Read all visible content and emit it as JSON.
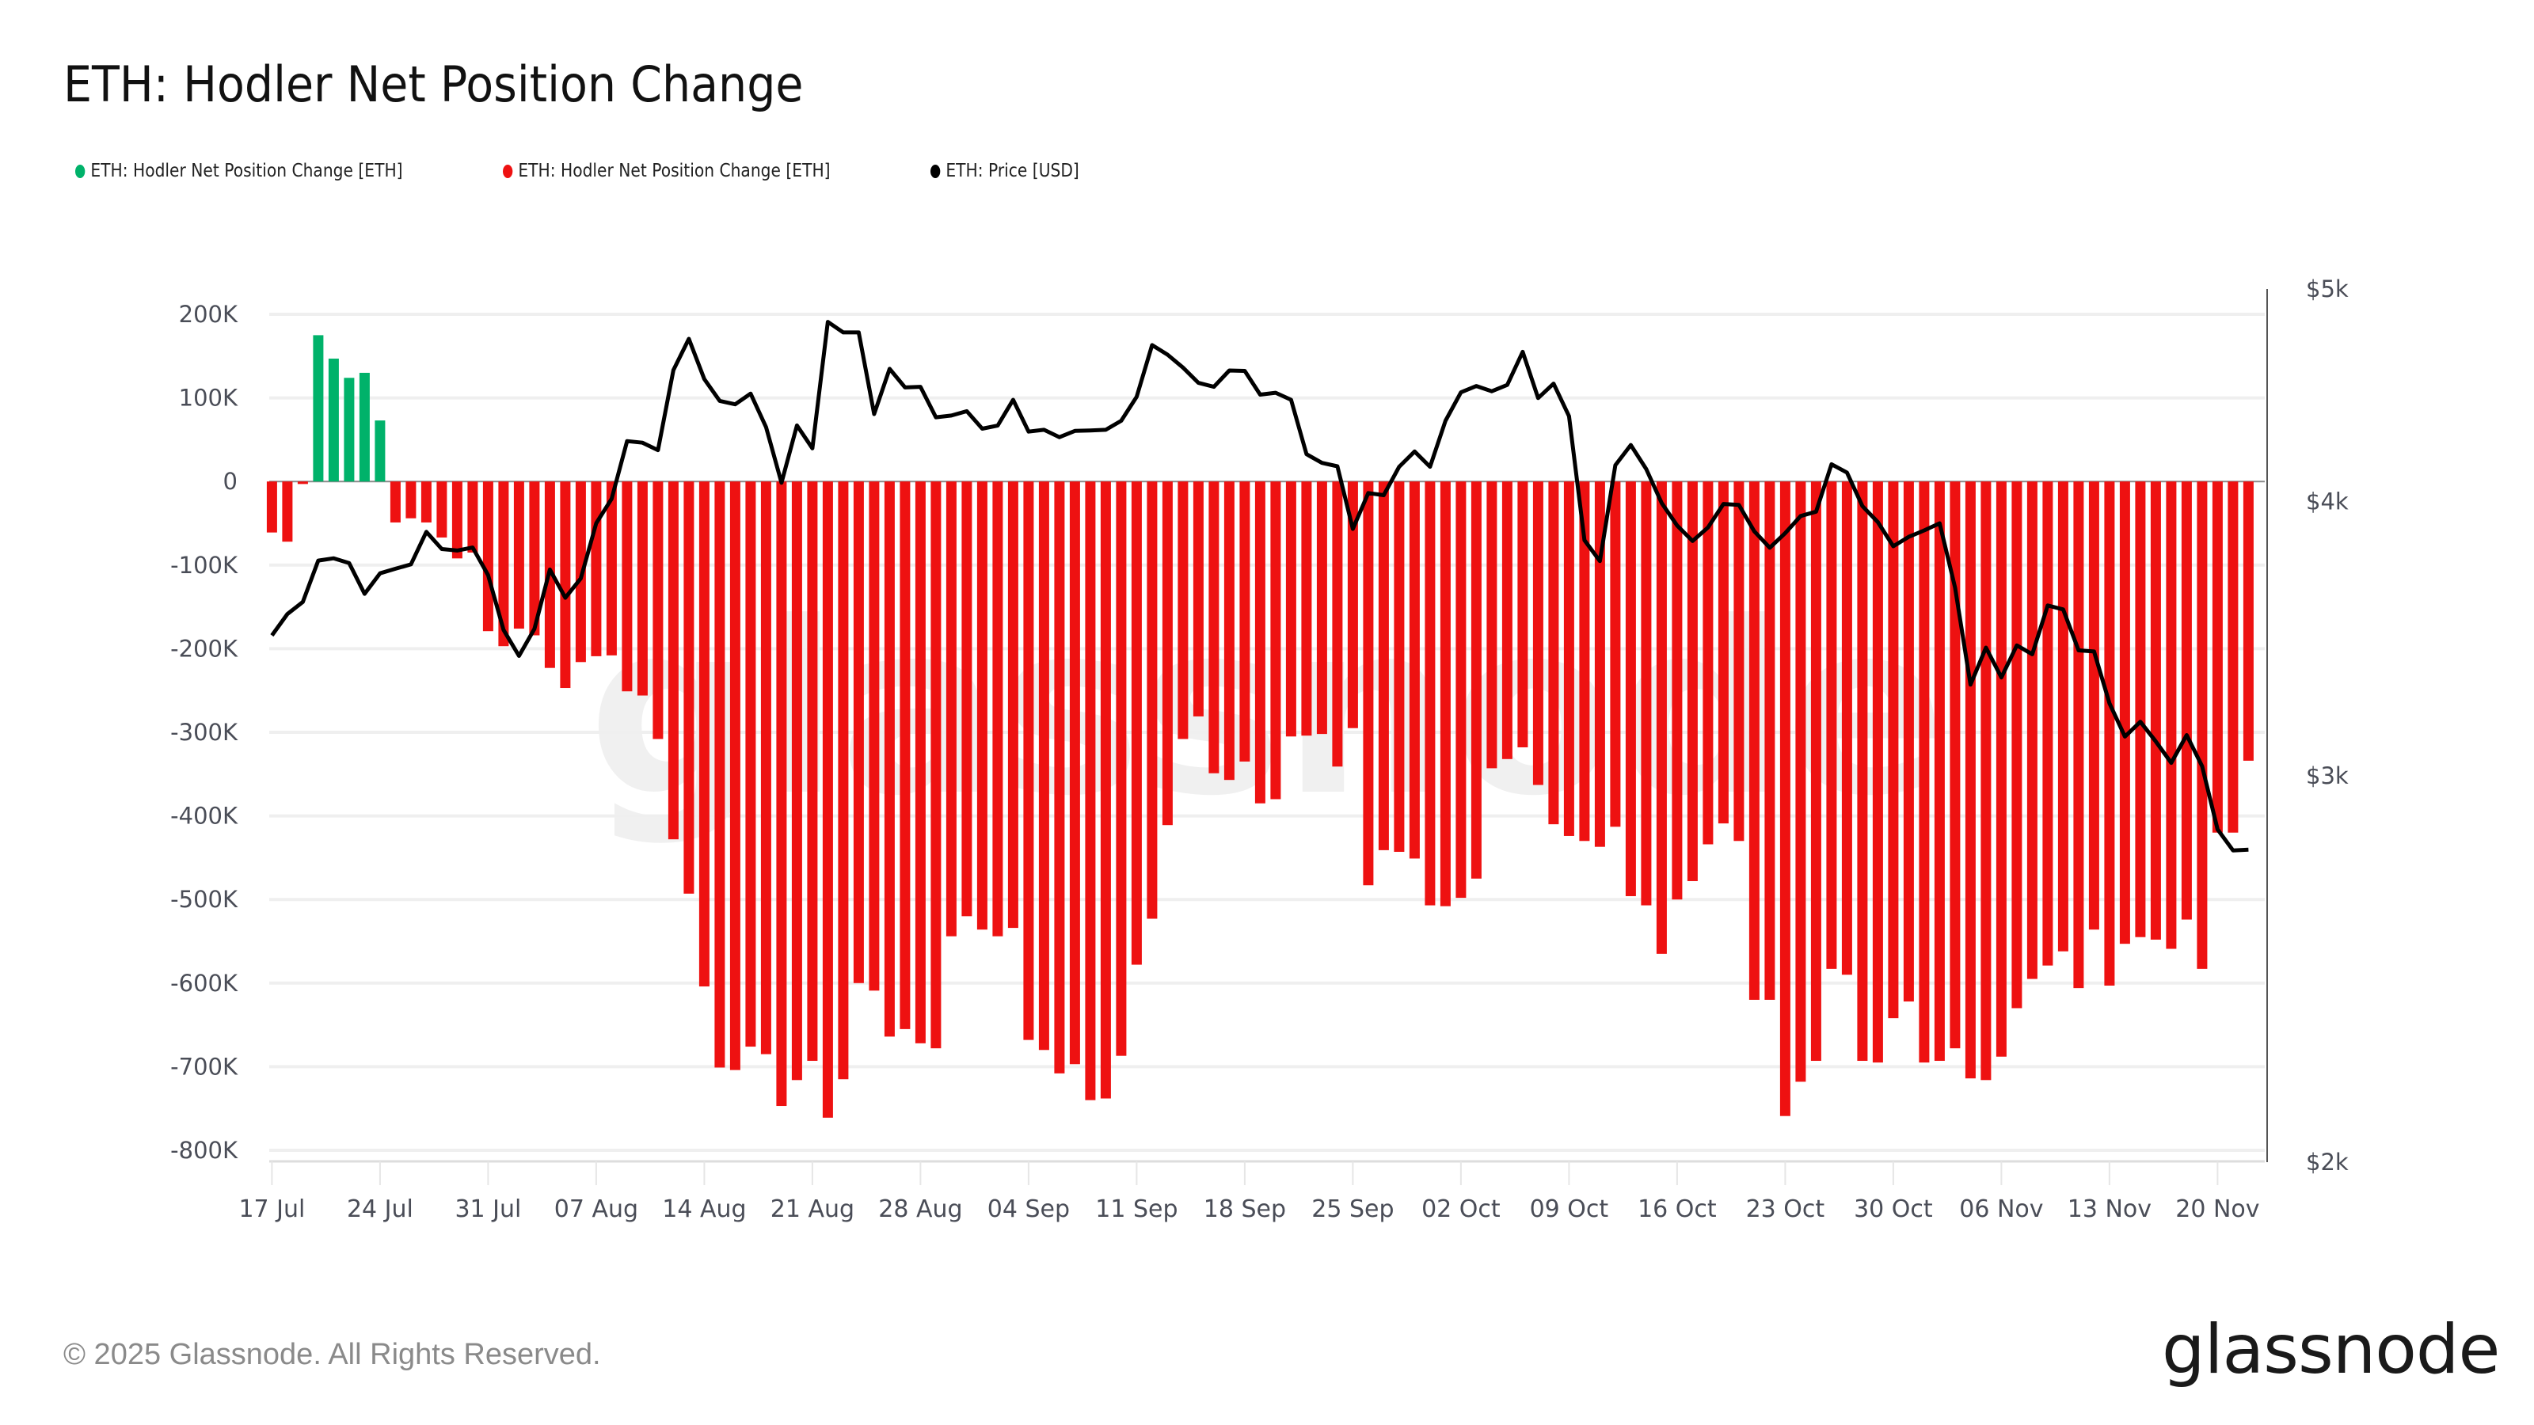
{
  "title": "ETH: Hodler Net Position Change",
  "legend": [
    {
      "label": "ETH: Hodler Net Position Change [ETH]",
      "color": "#00b26a"
    },
    {
      "label": "ETH: Hodler Net Position Change [ETH]",
      "color": "#ee1111"
    },
    {
      "label": "ETH: Price [USD]",
      "color": "#000000"
    }
  ],
  "footer": "© 2025 Glassnode. All Rights Reserved.",
  "logo": "glassnode",
  "watermark": "glassnode",
  "chart_data": {
    "type": "bar",
    "title": "ETH: Hodler Net Position Change",
    "grid": true,
    "legend_position": "top-left",
    "x_tick_labels": [
      "17 Jul",
      "24 Jul",
      "31 Jul",
      "07 Aug",
      "14 Aug",
      "21 Aug",
      "28 Aug",
      "04 Sep",
      "11 Sep",
      "18 Sep",
      "25 Sep",
      "02 Oct",
      "09 Oct",
      "16 Oct",
      "23 Oct",
      "30 Oct",
      "06 Nov",
      "13 Nov",
      "20 Nov"
    ],
    "y_left": {
      "ticks": [
        "200K",
        "100K",
        "0",
        "-100K",
        "-200K",
        "-300K",
        "-400K",
        "-500K",
        "-600K",
        "-700K",
        "-800K"
      ],
      "tick_values": [
        200000,
        100000,
        0,
        -100000,
        -200000,
        -300000,
        -400000,
        -500000,
        -600000,
        -700000,
        -800000
      ],
      "range": [
        -800000,
        200000
      ]
    },
    "y_right": {
      "scale": "log",
      "ticks": [
        "$5k",
        "$4k",
        "$3k",
        "$2k"
      ],
      "tick_values": [
        5000,
        4000,
        3000,
        2000
      ],
      "range": [
        2000,
        5000
      ]
    },
    "x": [
      "2025-07-17",
      "2025-07-18",
      "2025-07-19",
      "2025-07-20",
      "2025-07-21",
      "2025-07-22",
      "2025-07-23",
      "2025-07-24",
      "2025-07-25",
      "2025-07-26",
      "2025-07-27",
      "2025-07-28",
      "2025-07-29",
      "2025-07-30",
      "2025-07-31",
      "2025-08-01",
      "2025-08-02",
      "2025-08-03",
      "2025-08-04",
      "2025-08-05",
      "2025-08-06",
      "2025-08-07",
      "2025-08-08",
      "2025-08-09",
      "2025-08-10",
      "2025-08-11",
      "2025-08-12",
      "2025-08-13",
      "2025-08-14",
      "2025-08-15",
      "2025-08-16",
      "2025-08-17",
      "2025-08-18",
      "2025-08-19",
      "2025-08-20",
      "2025-08-21",
      "2025-08-22",
      "2025-08-23",
      "2025-08-24",
      "2025-08-25",
      "2025-08-26",
      "2025-08-27",
      "2025-08-28",
      "2025-08-29",
      "2025-08-30",
      "2025-08-31",
      "2025-09-01",
      "2025-09-02",
      "2025-09-03",
      "2025-09-04",
      "2025-09-05",
      "2025-09-06",
      "2025-09-07",
      "2025-09-08",
      "2025-09-09",
      "2025-09-10",
      "2025-09-11",
      "2025-09-12",
      "2025-09-13",
      "2025-09-14",
      "2025-09-15",
      "2025-09-16",
      "2025-09-17",
      "2025-09-18",
      "2025-09-19",
      "2025-09-20",
      "2025-09-21",
      "2025-09-22",
      "2025-09-23",
      "2025-09-24",
      "2025-09-25",
      "2025-09-26",
      "2025-09-27",
      "2025-09-28",
      "2025-09-29",
      "2025-09-30",
      "2025-10-01",
      "2025-10-02",
      "2025-10-03",
      "2025-10-04",
      "2025-10-05",
      "2025-10-06",
      "2025-10-07",
      "2025-10-08",
      "2025-10-09",
      "2025-10-10",
      "2025-10-11",
      "2025-10-12",
      "2025-10-13",
      "2025-10-14",
      "2025-10-15",
      "2025-10-16",
      "2025-10-17",
      "2025-10-18",
      "2025-10-19",
      "2025-10-20",
      "2025-10-21",
      "2025-10-22",
      "2025-10-23",
      "2025-10-24",
      "2025-10-25",
      "2025-10-26",
      "2025-10-27",
      "2025-10-28",
      "2025-10-29",
      "2025-10-30",
      "2025-10-31",
      "2025-11-01",
      "2025-11-02",
      "2025-11-03",
      "2025-11-04",
      "2025-11-05",
      "2025-11-06",
      "2025-11-07",
      "2025-11-08",
      "2025-11-09",
      "2025-11-10",
      "2025-11-11",
      "2025-11-12",
      "2025-11-13",
      "2025-11-14",
      "2025-11-15",
      "2025-11-16",
      "2025-11-17",
      "2025-11-18",
      "2025-11-19",
      "2025-11-20",
      "2025-11-21",
      "2025-11-22"
    ],
    "series": [
      {
        "name": "ETH: Hodler Net Position Change [ETH]",
        "type": "bar",
        "axis": "left",
        "color_positive": "#00b26a",
        "color_negative": "#ee1111",
        "values": [
          -61000,
          -72000,
          -3000,
          175000,
          147000,
          124000,
          130000,
          73000,
          -49000,
          -44000,
          -49000,
          -67000,
          -92000,
          -85000,
          -179000,
          -197000,
          -176000,
          -184000,
          -223000,
          -247000,
          -216000,
          -209000,
          -208000,
          -251000,
          -256000,
          -308000,
          -428000,
          -493000,
          -604000,
          -701000,
          -704000,
          -676000,
          -685000,
          -747000,
          -716000,
          -693000,
          -761000,
          -715000,
          -600000,
          -609000,
          -664000,
          -655000,
          -672000,
          -678000,
          -544000,
          -520000,
          -536000,
          -544000,
          -534000,
          -668000,
          -680000,
          -708000,
          -697000,
          -740000,
          -738000,
          -687000,
          -578000,
          -523000,
          -411000,
          -308000,
          -281000,
          -349000,
          -357000,
          -335000,
          -385000,
          -380000,
          -305000,
          -304000,
          -302000,
          -341000,
          -295000,
          -483000,
          -441000,
          -443000,
          -451000,
          -507000,
          -508000,
          -498000,
          -475000,
          -343000,
          -332000,
          -318000,
          -363000,
          -410000,
          -424000,
          -430000,
          -437000,
          -413000,
          -496000,
          -507000,
          -565000,
          -500000,
          -478000,
          -434000,
          -409000,
          -430000,
          -620000,
          -620000,
          -759000,
          -718000,
          -693000,
          -583000,
          -590000,
          -693000,
          -695000,
          -642000,
          -622000,
          -695000,
          -693000,
          -678000,
          -714000,
          -716000,
          -688000,
          -630000,
          -595000,
          -579000,
          -562000,
          -606000,
          -536000,
          -603000,
          -553000,
          -545000,
          -548000,
          -559000,
          -524000,
          -583000,
          -420000,
          -420000,
          -334000
        ]
      },
      {
        "name": "ETH: Price [USD]",
        "type": "line",
        "axis": "right",
        "color": "#000000",
        "values": [
          3476,
          3555,
          3600,
          3760,
          3769,
          3750,
          3631,
          3710,
          3728,
          3745,
          3875,
          3806,
          3800,
          3812,
          3703,
          3496,
          3402,
          3500,
          3725,
          3616,
          3690,
          3910,
          4012,
          4262,
          4255,
          4222,
          4592,
          4745,
          4549,
          4446,
          4430,
          4480,
          4325,
          4080,
          4333,
          4230,
          4830,
          4777,
          4777,
          4385,
          4598,
          4509,
          4512,
          4370,
          4378,
          4398,
          4318,
          4332,
          4451,
          4305,
          4313,
          4280,
          4308,
          4310,
          4313,
          4354,
          4465,
          4714,
          4667,
          4604,
          4531,
          4512,
          4590,
          4588,
          4475,
          4484,
          4451,
          4204,
          4166,
          4151,
          3887,
          4036,
          4027,
          4149,
          4216,
          4149,
          4354,
          4486,
          4516,
          4491,
          4521,
          4681,
          4459,
          4527,
          4375,
          3841,
          3758,
          4156,
          4245,
          4139,
          3994,
          3901,
          3838,
          3893,
          3990,
          3986,
          3877,
          3811,
          3870,
          3940,
          3958,
          4160,
          4124,
          3981,
          3915,
          3817,
          3855,
          3881,
          3910,
          3655,
          3301,
          3432,
          3326,
          3440,
          3408,
          3587,
          3572,
          3422,
          3418,
          3237,
          3126,
          3175,
          3110,
          3041,
          3131,
          3030,
          2836,
          2774,
          2776
        ]
      }
    ]
  }
}
